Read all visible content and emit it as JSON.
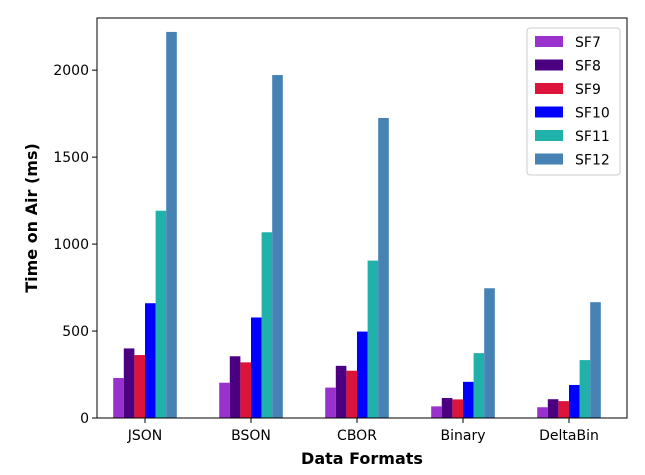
{
  "chart_data": {
    "type": "bar",
    "title": "",
    "xlabel": "Data Formats",
    "ylabel": "Time on Air (ms)",
    "categories": [
      "JSON",
      "BSON",
      "CBOR",
      "Binary",
      "DeltaBin"
    ],
    "ylim": [
      0,
      2300
    ],
    "yticks": [
      0,
      500,
      1000,
      1500,
      2000
    ],
    "grid": false,
    "legend_position": "top-right",
    "series": [
      {
        "name": "SF7",
        "color": "#9932CC",
        "values": [
          230,
          203,
          175,
          67,
          62
        ]
      },
      {
        "name": "SF8",
        "color": "#4B0082",
        "values": [
          400,
          355,
          300,
          115,
          108
        ]
      },
      {
        "name": "SF9",
        "color": "#DC143C",
        "values": [
          362,
          320,
          272,
          107,
          97
        ]
      },
      {
        "name": "SF10",
        "color": "#0000FF",
        "values": [
          660,
          578,
          497,
          208,
          190
        ]
      },
      {
        "name": "SF11",
        "color": "#20B2AA",
        "values": [
          1192,
          1068,
          905,
          373,
          333
        ]
      },
      {
        "name": "SF12",
        "color": "#4682B4",
        "values": [
          2220,
          1972,
          1725,
          746,
          666
        ]
      }
    ]
  }
}
